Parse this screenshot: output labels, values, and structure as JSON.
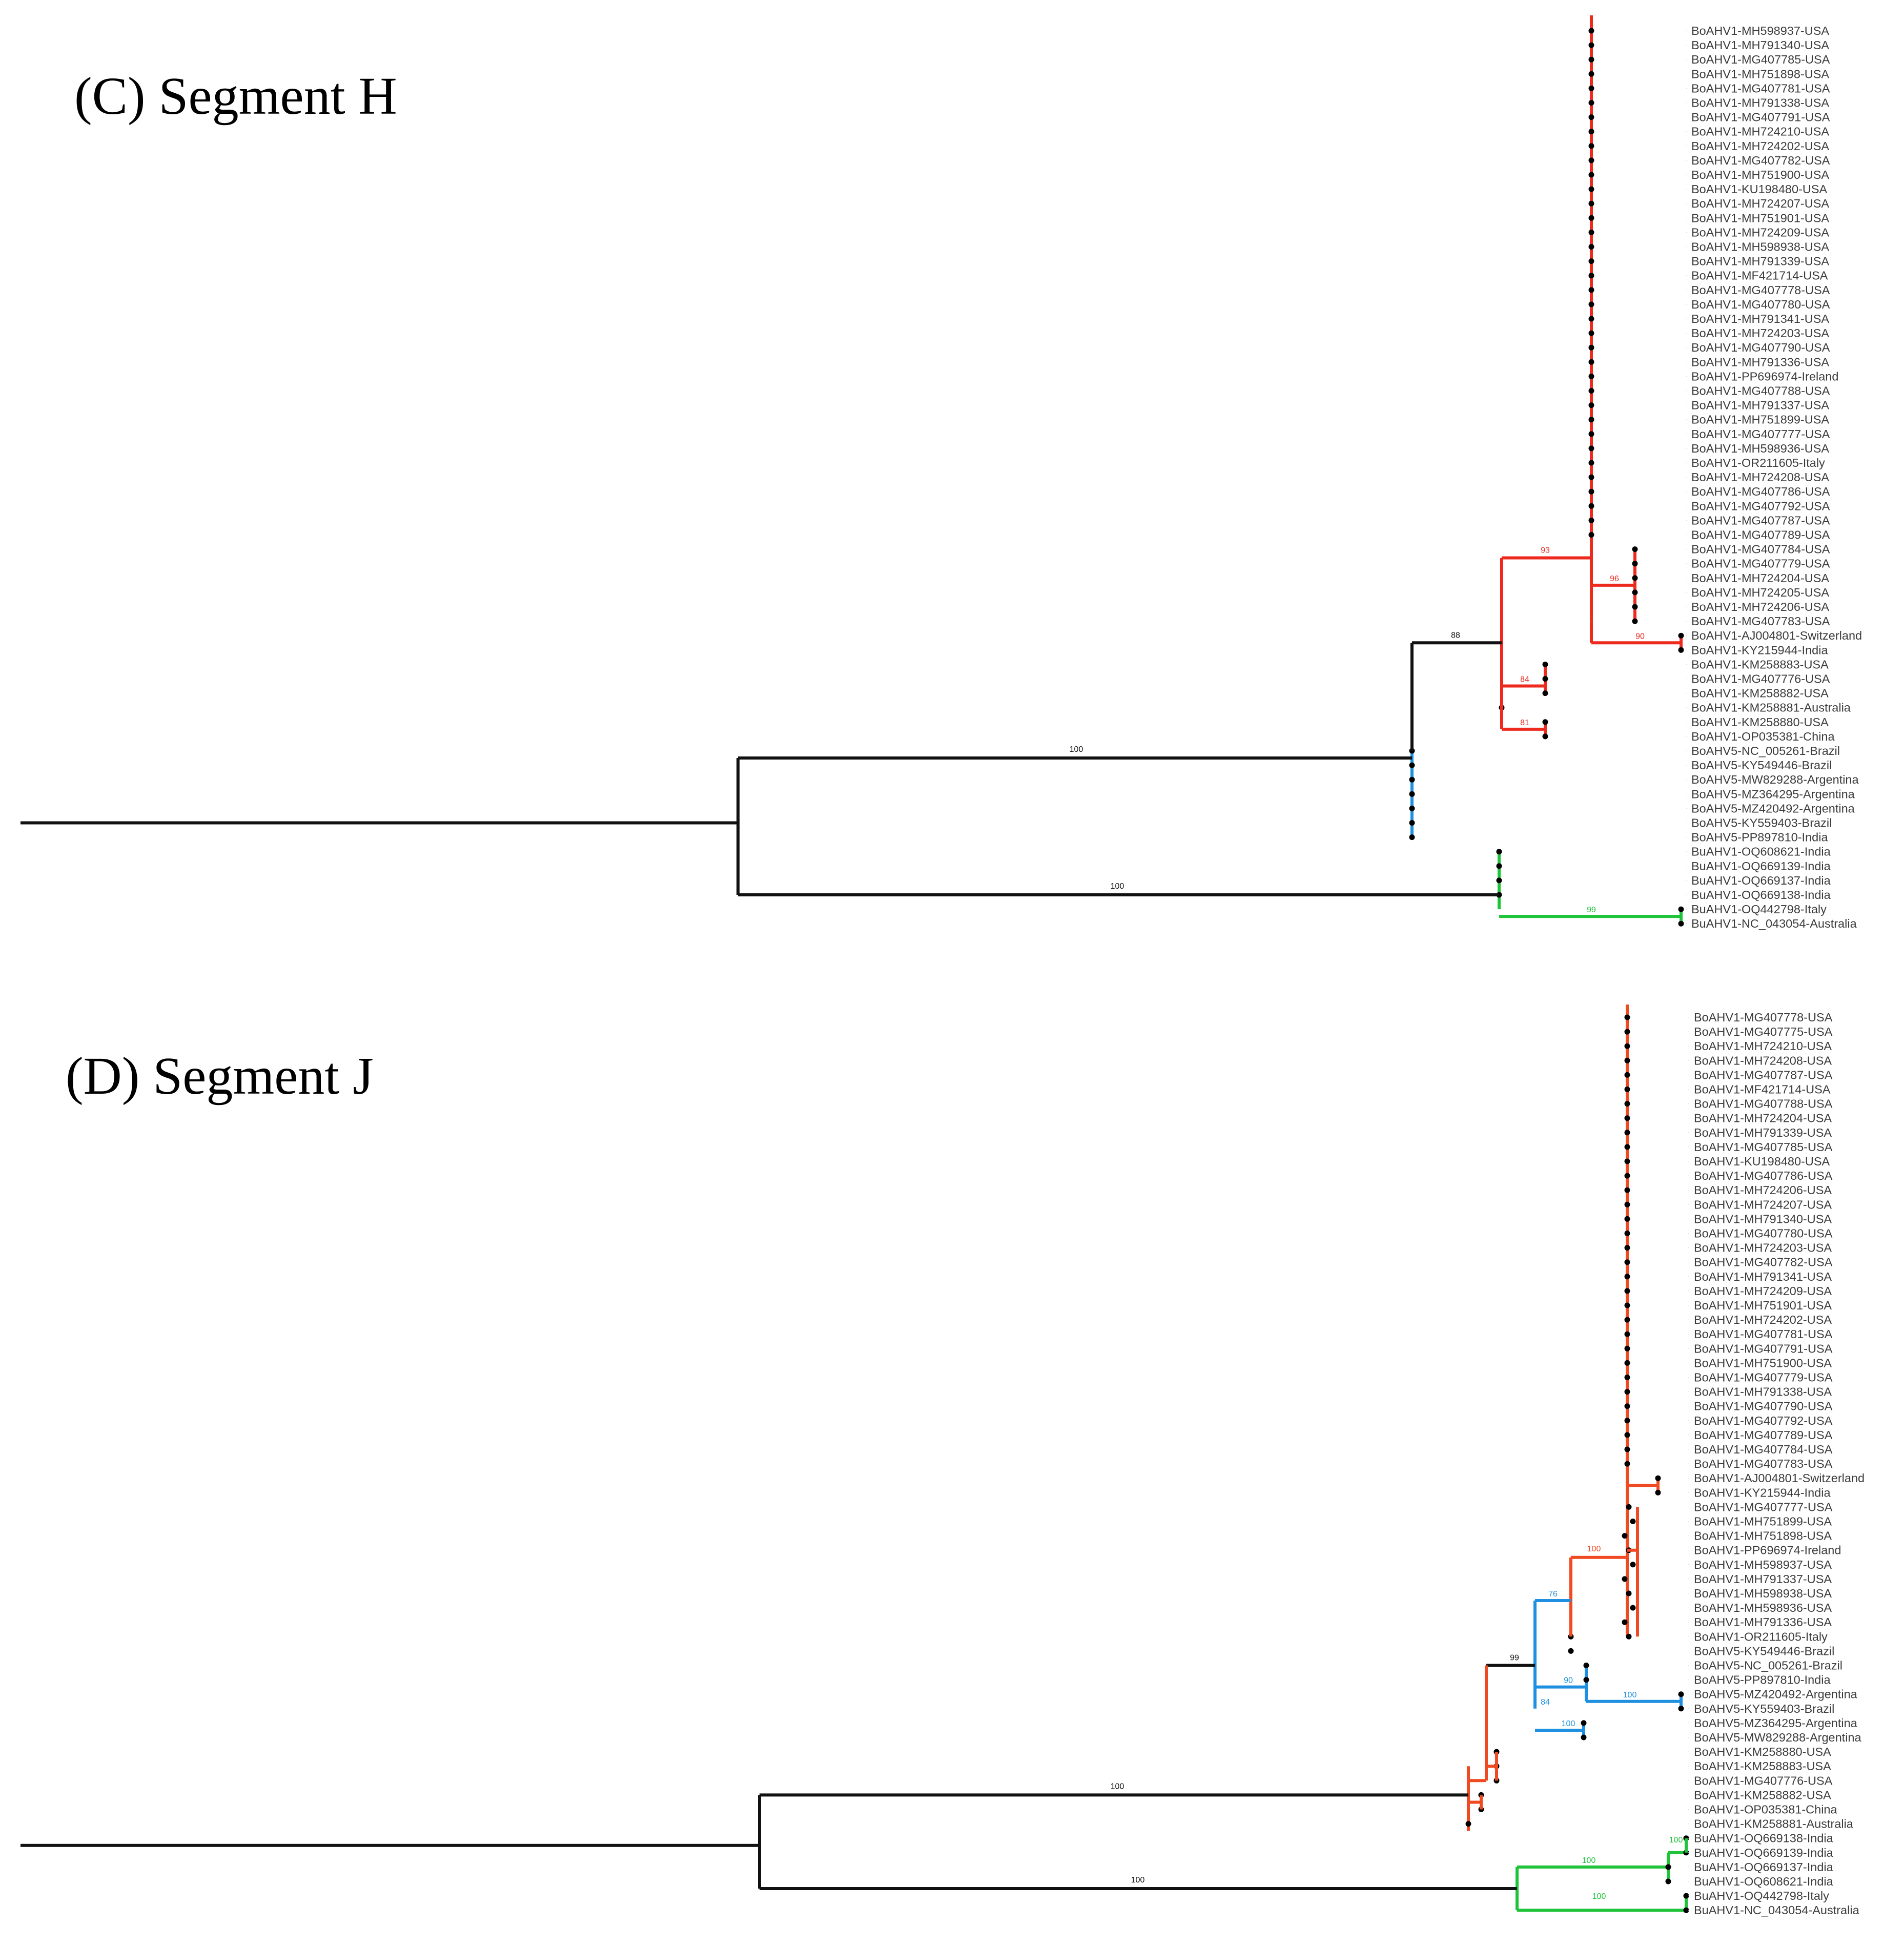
{
  "colors": {
    "boahv1": "#ee2a1f",
    "boahv1_j": "#f04a22",
    "boahv5": "#1f90e0",
    "buahv1": "#1ec339",
    "backbone": "#111111",
    "tip_text": "#3c3c3c"
  },
  "panels": [
    {
      "id": "C",
      "title": "(C) Segment H",
      "tips": [
        "BoAHV1-MH598937-USA",
        "BoAHV1-MH791340-USA",
        "BoAHV1-MG407785-USA",
        "BoAHV1-MH751898-USA",
        "BoAHV1-MG407781-USA",
        "BoAHV1-MH791338-USA",
        "BoAHV1-MG407791-USA",
        "BoAHV1-MH724210-USA",
        "BoAHV1-MH724202-USA",
        "BoAHV1-MG407782-USA",
        "BoAHV1-MH751900-USA",
        "BoAHV1-KU198480-USA",
        "BoAHV1-MH724207-USA",
        "BoAHV1-MH751901-USA",
        "BoAHV1-MH724209-USA",
        "BoAHV1-MH598938-USA",
        "BoAHV1-MH791339-USA",
        "BoAHV1-MF421714-USA",
        "BoAHV1-MG407778-USA",
        "BoAHV1-MG407780-USA",
        "BoAHV1-MH791341-USA",
        "BoAHV1-MH724203-USA",
        "BoAHV1-MG407790-USA",
        "BoAHV1-MH791336-USA",
        "BoAHV1-PP696974-Ireland",
        "BoAHV1-MG407788-USA",
        "BoAHV1-MH791337-USA",
        "BoAHV1-MH751899-USA",
        "BoAHV1-MG407777-USA",
        "BoAHV1-MH598936-USA",
        "BoAHV1-OR211605-Italy",
        "BoAHV1-MH724208-USA",
        "BoAHV1-MG407786-USA",
        "BoAHV1-MG407792-USA",
        "BoAHV1-MG407787-USA",
        "BoAHV1-MG407789-USA",
        "BoAHV1-MG407784-USA",
        "BoAHV1-MG407779-USA",
        "BoAHV1-MH724204-USA",
        "BoAHV1-MH724205-USA",
        "BoAHV1-MH724206-USA",
        "BoAHV1-MG407783-USA",
        "BoAHV1-AJ004801-Switzerland",
        "BoAHV1-KY215944-India",
        "BoAHV1-KM258883-USA",
        "BoAHV1-MG407776-USA",
        "BoAHV1-KM258882-USA",
        "BoAHV1-KM258881-Australia",
        "BoAHV1-KM258880-USA",
        "BoAHV1-OP035381-China",
        "BoAHV5-NC_005261-Brazil",
        "BoAHV5-KY549446-Brazil",
        "BoAHV5-MW829288-Argentina",
        "BoAHV5-MZ364295-Argentina",
        "BoAHV5-MZ420492-Argentina",
        "BoAHV5-KY559403-Brazil",
        "BoAHV5-PP897810-India",
        "BuAHV1-OQ608621-India",
        "BuAHV1-OQ669139-India",
        "BuAHV1-OQ669137-India",
        "BuAHV1-OQ669138-India",
        "BuAHV1-OQ442798-Italy",
        "BuAHV1-NC_043054-Australia"
      ],
      "supports": [
        "100",
        "100",
        "88",
        "93",
        "96",
        "90",
        "84",
        "81",
        "99"
      ]
    },
    {
      "id": "D",
      "title": "(D) Segment J",
      "tips": [
        "BoAHV1-MG407778-USA",
        "BoAHV1-MG407775-USA",
        "BoAHV1-MH724210-USA",
        "BoAHV1-MH724208-USA",
        "BoAHV1-MG407787-USA",
        "BoAHV1-MF421714-USA",
        "BoAHV1-MG407788-USA",
        "BoAHV1-MH724204-USA",
        "BoAHV1-MH791339-USA",
        "BoAHV1-MG407785-USA",
        "BoAHV1-KU198480-USA",
        "BoAHV1-MG407786-USA",
        "BoAHV1-MH724206-USA",
        "BoAHV1-MH724207-USA",
        "BoAHV1-MH791340-USA",
        "BoAHV1-MG407780-USA",
        "BoAHV1-MH724203-USA",
        "BoAHV1-MG407782-USA",
        "BoAHV1-MH791341-USA",
        "BoAHV1-MH724209-USA",
        "BoAHV1-MH751901-USA",
        "BoAHV1-MH724202-USA",
        "BoAHV1-MG407781-USA",
        "BoAHV1-MG407791-USA",
        "BoAHV1-MH751900-USA",
        "BoAHV1-MG407779-USA",
        "BoAHV1-MH791338-USA",
        "BoAHV1-MG407790-USA",
        "BoAHV1-MG407792-USA",
        "BoAHV1-MG407789-USA",
        "BoAHV1-MG407784-USA",
        "BoAHV1-MG407783-USA",
        "BoAHV1-AJ004801-Switzerland",
        "BoAHV1-KY215944-India",
        "BoAHV1-MG407777-USA",
        "BoAHV1-MH751899-USA",
        "BoAHV1-MH751898-USA",
        "BoAHV1-PP696974-Ireland",
        "BoAHV1-MH598937-USA",
        "BoAHV1-MH791337-USA",
        "BoAHV1-MH598938-USA",
        "BoAHV1-MH598936-USA",
        "BoAHV1-MH791336-USA",
        "BoAHV1-OR211605-Italy",
        "BoAHV5-KY549446-Brazil",
        "BoAHV5-NC_005261-Brazil",
        "BoAHV5-PP897810-India",
        "BoAHV5-MZ420492-Argentina",
        "BoAHV5-KY559403-Brazil",
        "BoAHV5-MZ364295-Argentina",
        "BoAHV5-MW829288-Argentina",
        "BoAHV1-KM258880-USA",
        "BoAHV1-KM258883-USA",
        "BoAHV1-MG407776-USA",
        "BoAHV1-KM258882-USA",
        "BoAHV1-OP035381-China",
        "BoAHV1-KM258881-Australia",
        "BuAHV1-OQ669138-India",
        "BuAHV1-OQ669139-India",
        "BuAHV1-OQ669137-India",
        "BuAHV1-OQ608621-India",
        "BuAHV1-OQ442798-Italy",
        "BuAHV1-NC_043054-Australia"
      ],
      "supports": [
        "100",
        "100",
        "99",
        "76",
        "100",
        "90",
        "84",
        "100",
        "100",
        "100",
        "100",
        "100"
      ]
    }
  ]
}
